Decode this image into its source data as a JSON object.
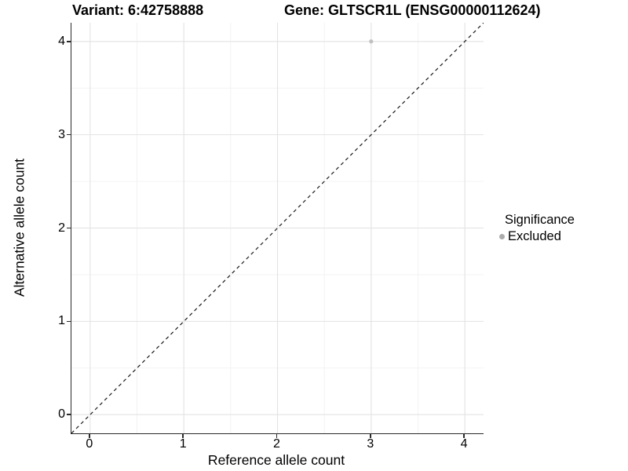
{
  "titles": {
    "variant": "Variant: 6:42758888",
    "gene": "Gene: GLTSCR1L (ENSG00000112624)"
  },
  "chart_data": {
    "type": "scatter",
    "title": "Variant: 6:42758888   Gene: GLTSCR1L (ENSG00000112624)",
    "xlabel": "Reference allele count",
    "ylabel": "Alternative allele count",
    "xlim": [
      -0.2,
      4.2
    ],
    "ylim": [
      -0.2,
      4.2
    ],
    "x_ticks": [
      0,
      1,
      2,
      3,
      4
    ],
    "y_ticks": [
      0,
      1,
      2,
      3,
      4
    ],
    "grid": true,
    "legend_position": "right",
    "series": [
      {
        "name": "Excluded",
        "color": "#c0c0c0",
        "point_radius": 2.6,
        "points": [
          {
            "x": 3,
            "y": 4
          }
        ]
      }
    ],
    "reference_line": {
      "type": "identity",
      "slope": 1,
      "intercept": 0,
      "style": "dashed",
      "color": "#1a1a1a"
    },
    "legend": {
      "title": "Significance",
      "items": [
        {
          "label": "Excluded",
          "color": "#ababab"
        }
      ]
    }
  },
  "colors": {
    "background": "#ffffff",
    "axis_line": "#2b2b2b",
    "grid_major": "#e3e3e3",
    "grid_minor": "#f1f1f1",
    "point_excluded": "#c0c0c0"
  }
}
